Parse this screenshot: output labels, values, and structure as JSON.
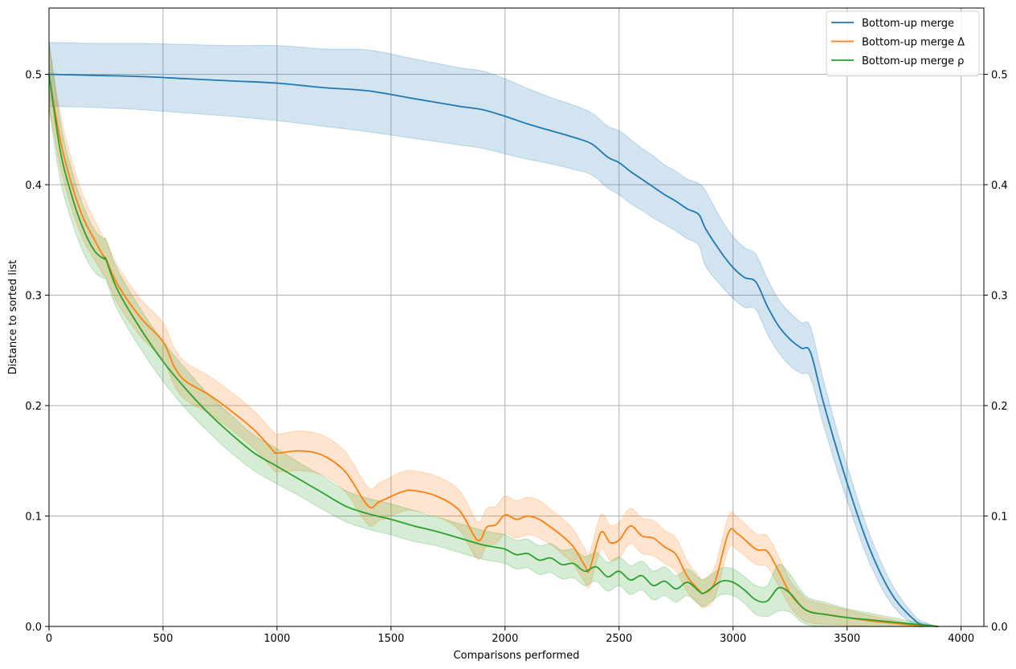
{
  "chart_data": {
    "type": "line",
    "title": "",
    "xlabel": "Comparisons performed",
    "ylabel": "Distance to sorted list",
    "xlim": [
      0,
      4100
    ],
    "ylim": [
      0,
      0.56
    ],
    "xticks": [
      0,
      500,
      1000,
      1500,
      2000,
      2500,
      3000,
      3500,
      4000
    ],
    "xtick_labels": [
      "0",
      "500",
      "1000",
      "1500",
      "2000",
      "2500",
      "3000",
      "3500",
      "4000"
    ],
    "yticks": [
      0.0,
      0.1,
      0.2,
      0.3,
      0.4,
      0.5
    ],
    "ytick_labels": [
      "0.0",
      "0.1",
      "0.2",
      "0.3",
      "0.4",
      "0.5"
    ],
    "grid": true,
    "legend": "top-right",
    "series": [
      {
        "name": "Bottom-up merge",
        "color": "#1f77b4",
        "x": [
          0,
          200,
          400,
          600,
          800,
          1000,
          1200,
          1400,
          1600,
          1800,
          1900,
          2000,
          2100,
          2200,
          2300,
          2380,
          2450,
          2500,
          2550,
          2600,
          2650,
          2700,
          2750,
          2800,
          2850,
          2880,
          2950,
          3000,
          3050,
          3100,
          3150,
          3200,
          3250,
          3300,
          3340,
          3400,
          3500,
          3600,
          3700,
          3800,
          3850,
          3900
        ],
        "y": [
          0.5,
          0.499,
          0.498,
          0.496,
          0.494,
          0.492,
          0.488,
          0.485,
          0.478,
          0.471,
          0.468,
          0.462,
          0.455,
          0.449,
          0.443,
          0.437,
          0.425,
          0.42,
          0.412,
          0.405,
          0.398,
          0.391,
          0.385,
          0.378,
          0.373,
          0.36,
          0.338,
          0.325,
          0.316,
          0.312,
          0.29,
          0.272,
          0.26,
          0.252,
          0.248,
          0.2,
          0.13,
          0.07,
          0.028,
          0.005,
          0.001,
          0.0
        ],
        "band": [
          0.029,
          0.029,
          0.03,
          0.031,
          0.032,
          0.034,
          0.035,
          0.037,
          0.036,
          0.035,
          0.035,
          0.034,
          0.032,
          0.03,
          0.029,
          0.028,
          0.028,
          0.029,
          0.029,
          0.028,
          0.028,
          0.027,
          0.027,
          0.027,
          0.028,
          0.034,
          0.03,
          0.028,
          0.027,
          0.025,
          0.025,
          0.024,
          0.024,
          0.023,
          0.023,
          0.02,
          0.016,
          0.013,
          0.009,
          0.004,
          0.002,
          0.0
        ]
      },
      {
        "name": "Bottom-up merge Δ",
        "color": "#ff7f0e",
        "x": [
          0,
          50,
          100,
          150,
          200,
          240,
          250,
          300,
          400,
          500,
          550,
          600,
          700,
          800,
          900,
          980,
          1000,
          1100,
          1200,
          1300,
          1400,
          1450,
          1550,
          1600,
          1700,
          1800,
          1880,
          1920,
          1960,
          2000,
          2050,
          2100,
          2150,
          2200,
          2250,
          2300,
          2350,
          2370,
          2420,
          2460,
          2500,
          2550,
          2600,
          2650,
          2700,
          2750,
          2800,
          2850,
          2870,
          2920,
          2980,
          3020,
          3100,
          3150,
          3200,
          3250,
          3300,
          3340,
          3400,
          3500,
          3600,
          3700,
          3800,
          3900
        ],
        "y": [
          0.5,
          0.44,
          0.4,
          0.37,
          0.35,
          0.335,
          0.333,
          0.31,
          0.28,
          0.258,
          0.235,
          0.222,
          0.21,
          0.195,
          0.178,
          0.16,
          0.157,
          0.159,
          0.155,
          0.14,
          0.109,
          0.113,
          0.122,
          0.123,
          0.118,
          0.105,
          0.078,
          0.09,
          0.092,
          0.101,
          0.097,
          0.1,
          0.097,
          0.09,
          0.082,
          0.072,
          0.055,
          0.051,
          0.085,
          0.076,
          0.078,
          0.091,
          0.082,
          0.08,
          0.072,
          0.065,
          0.045,
          0.033,
          0.03,
          0.04,
          0.085,
          0.084,
          0.07,
          0.068,
          0.05,
          0.03,
          0.018,
          0.013,
          0.011,
          0.008,
          0.005,
          0.003,
          0.001,
          0.0
        ],
        "band": [
          0.028,
          0.024,
          0.022,
          0.02,
          0.018,
          0.017,
          0.017,
          0.017,
          0.017,
          0.017,
          0.017,
          0.017,
          0.017,
          0.017,
          0.017,
          0.017,
          0.017,
          0.018,
          0.018,
          0.018,
          0.017,
          0.017,
          0.018,
          0.018,
          0.018,
          0.018,
          0.017,
          0.017,
          0.017,
          0.017,
          0.017,
          0.017,
          0.017,
          0.016,
          0.016,
          0.016,
          0.015,
          0.015,
          0.016,
          0.016,
          0.016,
          0.016,
          0.016,
          0.016,
          0.015,
          0.015,
          0.014,
          0.013,
          0.013,
          0.014,
          0.015,
          0.015,
          0.014,
          0.014,
          0.013,
          0.012,
          0.011,
          0.01,
          0.009,
          0.007,
          0.005,
          0.003,
          0.001,
          0.0
        ]
      },
      {
        "name": "Bottom-up merge ρ",
        "color": "#2ca02c",
        "x": [
          0,
          50,
          100,
          150,
          200,
          240,
          250,
          300,
          400,
          500,
          600,
          700,
          800,
          900,
          1000,
          1100,
          1200,
          1300,
          1400,
          1500,
          1600,
          1700,
          1800,
          1900,
          1950,
          2000,
          2050,
          2100,
          2150,
          2200,
          2250,
          2300,
          2350,
          2400,
          2450,
          2500,
          2550,
          2600,
          2650,
          2700,
          2750,
          2800,
          2850,
          2870,
          2900,
          2950,
          3000,
          3050,
          3100,
          3150,
          3200,
          3250,
          3300,
          3340,
          3400,
          3500,
          3600,
          3700,
          3800,
          3850,
          3900
        ],
        "y": [
          0.5,
          0.43,
          0.39,
          0.36,
          0.34,
          0.333,
          0.332,
          0.305,
          0.27,
          0.24,
          0.215,
          0.193,
          0.174,
          0.157,
          0.145,
          0.133,
          0.121,
          0.109,
          0.102,
          0.097,
          0.091,
          0.086,
          0.08,
          0.074,
          0.072,
          0.07,
          0.065,
          0.066,
          0.06,
          0.062,
          0.056,
          0.057,
          0.05,
          0.054,
          0.045,
          0.05,
          0.042,
          0.046,
          0.037,
          0.041,
          0.034,
          0.04,
          0.032,
          0.03,
          0.034,
          0.041,
          0.04,
          0.033,
          0.024,
          0.023,
          0.035,
          0.03,
          0.018,
          0.013,
          0.011,
          0.008,
          0.006,
          0.004,
          0.002,
          0.001,
          0.0
        ],
        "band": [
          0.03,
          0.026,
          0.023,
          0.021,
          0.019,
          0.018,
          0.018,
          0.018,
          0.018,
          0.018,
          0.018,
          0.017,
          0.017,
          0.016,
          0.016,
          0.015,
          0.015,
          0.014,
          0.014,
          0.014,
          0.014,
          0.013,
          0.013,
          0.013,
          0.013,
          0.013,
          0.013,
          0.013,
          0.013,
          0.013,
          0.013,
          0.013,
          0.013,
          0.013,
          0.013,
          0.013,
          0.013,
          0.013,
          0.013,
          0.013,
          0.012,
          0.012,
          0.012,
          0.012,
          0.012,
          0.012,
          0.012,
          0.012,
          0.013,
          0.014,
          0.021,
          0.017,
          0.014,
          0.012,
          0.011,
          0.008,
          0.006,
          0.004,
          0.002,
          0.001,
          0.0
        ]
      }
    ]
  }
}
